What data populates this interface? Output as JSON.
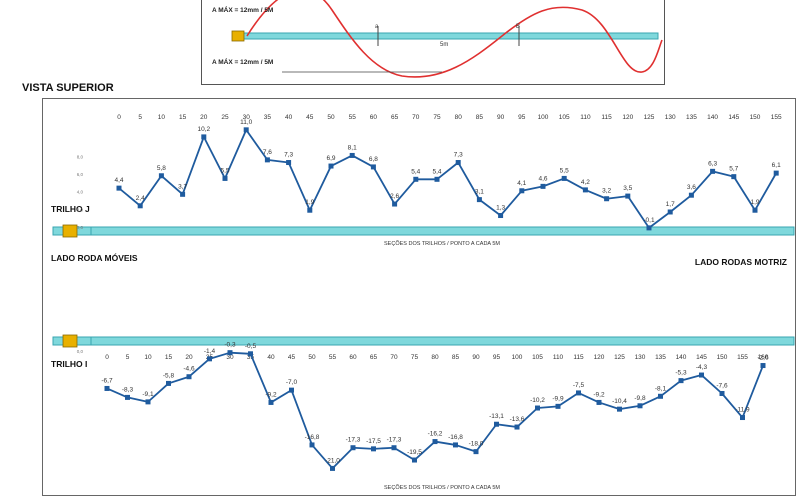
{
  "top_diagram": {
    "max_label_top": "A MÁX = 12mm / 5M",
    "max_label_bottom": "A MÁX = 12mm / 5M",
    "point_a": "a",
    "point_b": "B",
    "span_label": "5m"
  },
  "view_title": "VISTA SUPERIOR",
  "labels": {
    "left_side": "LADO RODA MÓVEIS",
    "right_side": "LADO RODAS MOTRIZ"
  },
  "colors": {
    "series_line": "#1f5b9e",
    "rail": "#7fd8dc",
    "wave": "#e03030",
    "coupling": "#e8b000"
  },
  "chart_data": [
    {
      "type": "line",
      "series_label": "TRILHO J",
      "xlabel": "SEÇÕES DOS TRILHOS / PONTO A CADA 5M",
      "x": [
        0,
        5,
        10,
        15,
        20,
        25,
        30,
        35,
        40,
        45,
        50,
        55,
        60,
        65,
        70,
        75,
        80,
        85,
        90,
        95,
        100,
        105,
        110,
        115,
        120,
        125,
        130,
        135,
        140,
        145,
        150,
        155
      ],
      "tick_labels": [
        "0",
        "5",
        "10",
        "15",
        "20",
        "25",
        "30",
        "35",
        "40",
        "45",
        "50",
        "55",
        "60",
        "65",
        "70",
        "75",
        "80",
        "85",
        "90",
        "95",
        "100",
        "105",
        "110",
        "115",
        "120",
        "125",
        "130",
        "135",
        "140",
        "145",
        "150",
        "155"
      ],
      "values": [
        4.4,
        2.4,
        5.8,
        3.7,
        10.2,
        5.5,
        11.0,
        7.6,
        7.3,
        1.9,
        6.9,
        8.1,
        6.8,
        2.6,
        5.4,
        5.4,
        7.3,
        3.1,
        1.3,
        4.1,
        4.6,
        5.5,
        4.2,
        3.2,
        3.5,
        -0.1,
        1.7,
        3.6,
        6.3,
        5.7,
        1.9,
        6.1
      ],
      "data_labels": [
        "4,4",
        "2,4",
        "5,8",
        "3,7",
        "10,2",
        "5,5",
        "11,0",
        "7,6",
        "7,3",
        "1,9",
        "6,9",
        "8,1",
        "6,8",
        "2,6",
        "5,4",
        "5,4",
        "7,3",
        "3,1",
        "1,3",
        "4,1",
        "4,6",
        "5,5",
        "4,2",
        "3,2",
        "3,5",
        "-0,1",
        "1,7",
        "3,6",
        "6,3",
        "5,7",
        "1,9",
        "6,1"
      ],
      "y_ticks": [
        "0,0",
        "2,0",
        "4,0",
        "6,0",
        "8,0"
      ],
      "ylim": [
        0,
        12
      ]
    },
    {
      "type": "line",
      "series_label": "TRILHO I",
      "xlabel": "SEÇÕES DOS TRILHOS / PONTO A CADA 5M",
      "x": [
        0,
        5,
        10,
        15,
        20,
        25,
        30,
        35,
        40,
        45,
        50,
        55,
        60,
        65,
        70,
        75,
        80,
        85,
        90,
        95,
        100,
        105,
        110,
        115,
        120,
        125,
        130,
        135,
        140,
        145,
        150,
        155,
        160
      ],
      "tick_labels": [
        "0",
        "5",
        "10",
        "15",
        "20",
        "25",
        "30",
        "35",
        "40",
        "45",
        "50",
        "55",
        "60",
        "65",
        "70",
        "75",
        "80",
        "85",
        "90",
        "95",
        "100",
        "105",
        "110",
        "115",
        "120",
        "125",
        "130",
        "135",
        "140",
        "145",
        "150",
        "155",
        "160"
      ],
      "values": [
        -6.7,
        -8.3,
        -9.1,
        -5.8,
        -4.6,
        -1.4,
        -0.3,
        -0.5,
        -9.2,
        -7.0,
        -16.8,
        -21.0,
        -17.3,
        -17.5,
        -17.3,
        -19.5,
        -16.2,
        -16.8,
        -18.0,
        -13.1,
        -13.6,
        -10.2,
        -9.9,
        -7.5,
        -9.2,
        -10.4,
        -9.8,
        -8.1,
        -5.3,
        -4.3,
        -7.6,
        -11.9,
        -2.6
      ],
      "data_labels": [
        "-6,7",
        "-8,3",
        "-9,1",
        "-5,8",
        "-4,6",
        "-1,4",
        "-0,3",
        "-0,5",
        "-9,2",
        "-7,0",
        "-16,8",
        "-21,0",
        "-17,3",
        "-17,5",
        "-17,3",
        "-19,5",
        "-16,2",
        "-16,8",
        "-18,0",
        "-13,1",
        "-13,6",
        "-10,2",
        "-9,9",
        "-7,5",
        "-9,2",
        "-10,4",
        "-9,8",
        "-8,1",
        "-5,3",
        "-4,3",
        "-7,6",
        "-11,9",
        "-2,6"
      ],
      "y_ticks": [
        "0,0"
      ],
      "ylim": [
        -22,
        0
      ]
    }
  ]
}
